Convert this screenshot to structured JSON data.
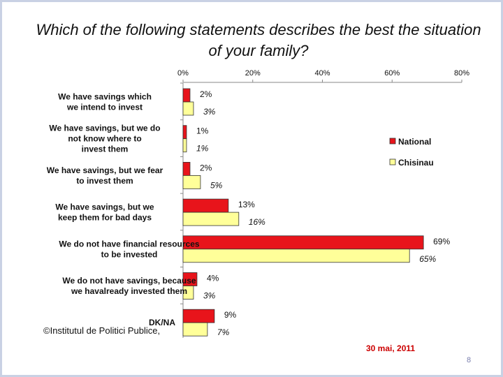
{
  "slide": {
    "title": "Which of the following statements describes the best the situation of your family?",
    "footer_left": "©Institutul de Politici Publice,",
    "date": "30 mai, 2011",
    "page_number": "8"
  },
  "chart_data": {
    "type": "bar",
    "orientation": "horizontal",
    "categories": [
      [
        "We have savings which",
        "we intend to invest"
      ],
      [
        "We have savings, but we do",
        "not know where to",
        "invest them"
      ],
      [
        "We have savings, but we fear",
        "to invest them"
      ],
      [
        "We have savings, but we",
        "keep them for bad days"
      ],
      [
        "We do not have financial resources",
        "to be invested"
      ],
      [
        "We do not have savings, because",
        "we havalready invested them"
      ],
      [
        "DK/NA"
      ]
    ],
    "series": [
      {
        "name": "National",
        "color": "#e8141b",
        "values": [
          2,
          1,
          2,
          13,
          69,
          4,
          9
        ]
      },
      {
        "name": "Chisinau",
        "color": "#ffff99",
        "values": [
          3,
          1,
          5,
          16,
          65,
          3,
          7
        ]
      }
    ],
    "xlim": [
      0,
      80
    ],
    "ticks": [
      0,
      20,
      40,
      60,
      80
    ],
    "tick_labels": [
      "0%",
      "20%",
      "40%",
      "60%",
      "80%"
    ],
    "value_suffix": "%",
    "legend_position": "right",
    "grid": false
  }
}
